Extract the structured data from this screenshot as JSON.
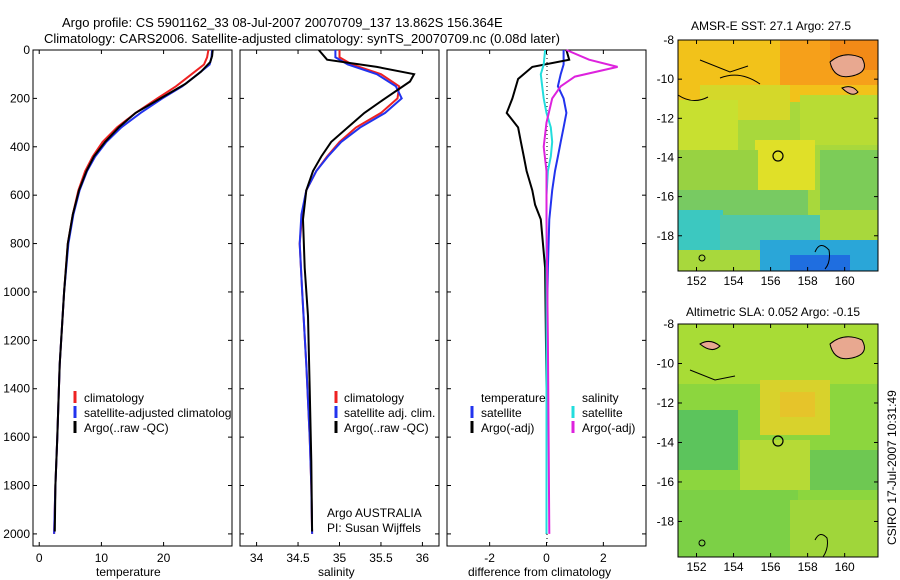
{
  "title_line1": "Argo profile: CS 5901162_33 08-Jul-2007 20070709_137 13.862S 156.364E",
  "title_line2": "Climatology: CARS2006. Satellite-adjusted climatology: synTS_20070709.nc (0.08d later)",
  "side_label": "CSIRO 17-Jul-2007 10:31:49",
  "colors": {
    "red": "#ee2222",
    "blue": "#2233ee",
    "black": "#000000",
    "cyan": "#22dddd",
    "magenta": "#dd22dd"
  },
  "chart_data": [
    {
      "type": "line",
      "xlabel": "temperature",
      "xlim": [
        -1,
        31
      ],
      "xticks": [
        0,
        10,
        20
      ],
      "ylim": [
        0,
        2050
      ],
      "yticks": [
        0,
        200,
        400,
        600,
        800,
        1000,
        1200,
        1400,
        1600,
        1800,
        2000
      ],
      "legend": [
        "climatology",
        "satellite-adjusted climatolog",
        "Argo(..raw -QC)"
      ],
      "series": [
        {
          "color": "red",
          "x": [
            27.2,
            27.0,
            26.5,
            24.5,
            22.0,
            19.0,
            15.5,
            12.5,
            10.2,
            8.6,
            7.4,
            6.3,
            5.4,
            4.6,
            4.0,
            3.3,
            2.9,
            2.6,
            2.4
          ],
          "y": [
            0,
            30,
            60,
            100,
            150,
            200,
            260,
            320,
            380,
            440,
            500,
            580,
            680,
            800,
            1000,
            1300,
            1600,
            1800,
            2000
          ]
        },
        {
          "color": "blue",
          "x": [
            27.8,
            27.7,
            27.4,
            25.5,
            23.0,
            19.8,
            16.3,
            13.2,
            10.8,
            9.0,
            7.7,
            6.5,
            5.5,
            4.7,
            4.0,
            3.3,
            2.9,
            2.6,
            2.4
          ],
          "y": [
            0,
            30,
            60,
            100,
            150,
            200,
            260,
            320,
            380,
            440,
            500,
            580,
            680,
            800,
            1000,
            1300,
            1600,
            1800,
            2000
          ]
        },
        {
          "color": "black",
          "x": [
            27.9,
            27.8,
            27.5,
            26.0,
            23.5,
            19.5,
            15.5,
            12.8,
            10.6,
            8.8,
            7.6,
            6.4,
            5.4,
            4.6,
            4.0,
            3.3,
            2.9,
            2.6,
            2.5
          ],
          "y": [
            0,
            25,
            50,
            90,
            140,
            200,
            260,
            320,
            380,
            440,
            500,
            580,
            680,
            800,
            1000,
            1300,
            1600,
            1800,
            1990
          ]
        }
      ]
    },
    {
      "type": "line",
      "xlabel": "salinity",
      "xlim": [
        33.8,
        36.2
      ],
      "xticks": [
        34,
        34.5,
        35,
        35.5,
        36
      ],
      "ylim": [
        0,
        2050
      ],
      "legend": [
        "climatology",
        "satellite adj. clim.",
        "Argo(..raw -QC)"
      ],
      "annotation_line1": "Argo AUSTRALIA",
      "annotation_line2": "PI: Susan Wijffels",
      "series": [
        {
          "color": "red",
          "x": [
            35.0,
            35.0,
            35.15,
            35.5,
            35.72,
            35.7,
            35.5,
            35.2,
            35.0,
            34.85,
            34.72,
            34.6,
            34.55,
            34.52,
            34.55,
            34.6,
            34.64,
            34.66,
            34.67
          ],
          "y": [
            0,
            30,
            60,
            100,
            150,
            200,
            260,
            320,
            380,
            440,
            500,
            580,
            680,
            800,
            1000,
            1300,
            1600,
            1800,
            2000
          ]
        },
        {
          "color": "blue",
          "x": [
            34.95,
            34.95,
            35.1,
            35.45,
            35.68,
            35.75,
            35.55,
            35.25,
            35.02,
            34.86,
            34.72,
            34.6,
            34.54,
            34.52,
            34.55,
            34.6,
            34.64,
            34.66,
            34.67
          ],
          "y": [
            0,
            30,
            60,
            100,
            150,
            200,
            260,
            320,
            380,
            440,
            500,
            580,
            680,
            800,
            1000,
            1300,
            1600,
            1800,
            2000
          ]
        },
        {
          "color": "black",
          "x": [
            34.75,
            34.85,
            35.45,
            35.9,
            35.85,
            35.55,
            35.3,
            35.1,
            34.9,
            34.78,
            34.68,
            34.6,
            34.56,
            34.58,
            34.62,
            34.64,
            34.66,
            34.67
          ],
          "y": [
            0,
            40,
            70,
            100,
            130,
            200,
            260,
            320,
            380,
            440,
            500,
            580,
            700,
            900,
            1100,
            1400,
            1700,
            1990
          ]
        }
      ]
    },
    {
      "type": "line",
      "xlabel": "difference from climatology",
      "xlim": [
        -3.5,
        3.5
      ],
      "xticks": [
        -2,
        0,
        2
      ],
      "ylim": [
        0,
        2050
      ],
      "legend_temperature": {
        "title": "temperature",
        "items": [
          "satellite",
          "Argo(-adj)"
        ]
      },
      "legend_salinity": {
        "title": "salinity",
        "items": [
          "satellite",
          "Argo(-adj)"
        ]
      },
      "series": [
        {
          "color": "blue",
          "name": "satellite",
          "x": [
            0.6,
            0.6,
            0.5,
            0.4,
            0.6,
            0.7,
            0.6,
            0.5,
            0.4,
            0.3,
            0.2,
            0.1,
            0.05,
            0.0,
            0.0,
            0.0
          ],
          "y": [
            0,
            60,
            100,
            150,
            200,
            260,
            320,
            380,
            440,
            500,
            580,
            700,
            900,
            1200,
            1600,
            2000
          ]
        },
        {
          "color": "black",
          "name": "Argo(-adj)",
          "x": [
            0.7,
            0.8,
            -0.5,
            -1.0,
            -1.2,
            -1.4,
            -1.0,
            -0.9,
            -0.8,
            -0.7,
            -0.5,
            -0.4,
            -0.2,
            -0.05,
            0.0,
            0.0
          ],
          "y": [
            0,
            40,
            70,
            120,
            200,
            260,
            320,
            380,
            440,
            500,
            580,
            640,
            700,
            900,
            1400,
            2000
          ]
        },
        {
          "color": "cyan",
          "name": "satellite",
          "x": [
            -0.05,
            -0.1,
            -0.2,
            -0.15,
            -0.1,
            0.0,
            0.15,
            0.2,
            0.15,
            0.05,
            0.0,
            0.0,
            0.0
          ],
          "y": [
            0,
            60,
            100,
            150,
            200,
            260,
            320,
            380,
            440,
            500,
            600,
            1000,
            2000
          ]
        },
        {
          "color": "magenta",
          "name": "Argo(-adj)",
          "x": [
            0.7,
            1.5,
            2.5,
            1.0,
            0.5,
            0.2,
            0.0,
            -0.1,
            0.0,
            0.0,
            0.05,
            0.1
          ],
          "y": [
            0,
            40,
            70,
            110,
            150,
            200,
            300,
            400,
            500,
            700,
            1200,
            2000
          ]
        }
      ]
    },
    {
      "type": "heatmap",
      "title": "AMSR-E SST: 27.1 Argo: 27.5",
      "xticks": [
        152,
        154,
        156,
        158,
        160
      ],
      "yticks": [
        -8,
        -10,
        -12,
        -14,
        -16,
        -18
      ],
      "xlim": [
        151,
        161.8
      ],
      "ylim": [
        -19.8,
        -8
      ],
      "marker": {
        "x": 156.364,
        "y": -13.862
      }
    },
    {
      "type": "heatmap",
      "title": "Altimetric SLA: 0.052 Argo: -0.15",
      "xticks": [
        152,
        154,
        156,
        158,
        160
      ],
      "yticks": [
        -8,
        -10,
        -12,
        -14,
        -16,
        -18
      ],
      "xlim": [
        151,
        161.8
      ],
      "ylim": [
        -19.8,
        -8
      ],
      "marker": {
        "x": 156.364,
        "y": -13.862
      }
    }
  ]
}
